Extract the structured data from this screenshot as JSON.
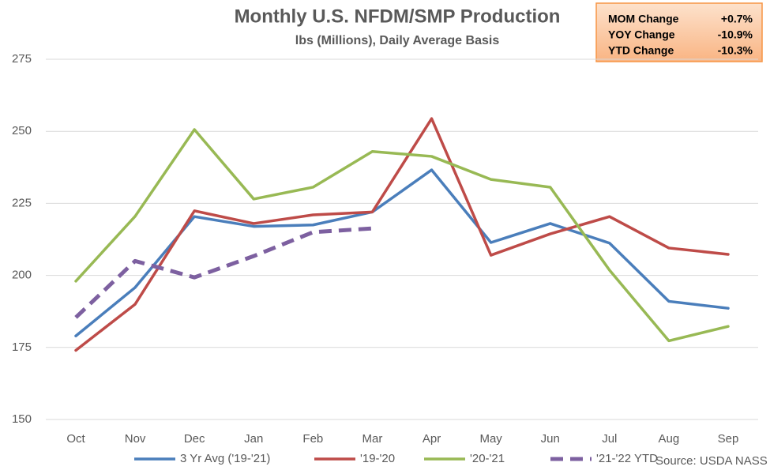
{
  "chart_data": {
    "type": "line",
    "title": "Monthly U.S. NFDM/SMP Production",
    "subtitle": "lbs (Millions), Daily Average Basis",
    "source": "Source: USDA NASS",
    "categories": [
      "Oct",
      "Nov",
      "Dec",
      "Jan",
      "Feb",
      "Mar",
      "Apr",
      "May",
      "Jun",
      "Jul",
      "Aug",
      "Sep"
    ],
    "series": [
      {
        "name": "3 Yr Avg ('19-'21)",
        "color": "#4a7ebb",
        "dashed": false,
        "values": [
          179,
          195.8,
          220.4,
          217,
          217.5,
          222,
          236.6,
          211.4,
          218,
          211.2,
          191,
          188.6
        ]
      },
      {
        "name": "'19-'20",
        "color": "#be4b48",
        "dashed": false,
        "values": [
          174,
          190,
          222.4,
          218,
          221,
          222,
          254.4,
          207,
          214.4,
          220.4,
          209.5,
          207.3
        ]
      },
      {
        "name": "'20-'21",
        "color": "#98b954",
        "dashed": false,
        "values": [
          198,
          220.5,
          250.6,
          226.5,
          230.6,
          243,
          241.3,
          233.3,
          230.6,
          201.8,
          177.3,
          182.3
        ]
      },
      {
        "name": "'21-'22 YTD",
        "color": "#7d60a0",
        "dashed": true,
        "values": [
          185.4,
          205,
          199.3,
          206.7,
          215,
          216.3,
          null,
          null,
          null,
          null,
          null,
          null
        ]
      }
    ],
    "ylim": [
      150,
      275
    ],
    "yticks": [
      150,
      175,
      200,
      225,
      250,
      275
    ],
    "grid": true,
    "legend": "bottom",
    "stats": [
      [
        "MOM Change",
        "+0.7%"
      ],
      [
        "YOY Change",
        "-10.9%"
      ],
      [
        "YTD Change",
        "-10.3%"
      ]
    ]
  }
}
